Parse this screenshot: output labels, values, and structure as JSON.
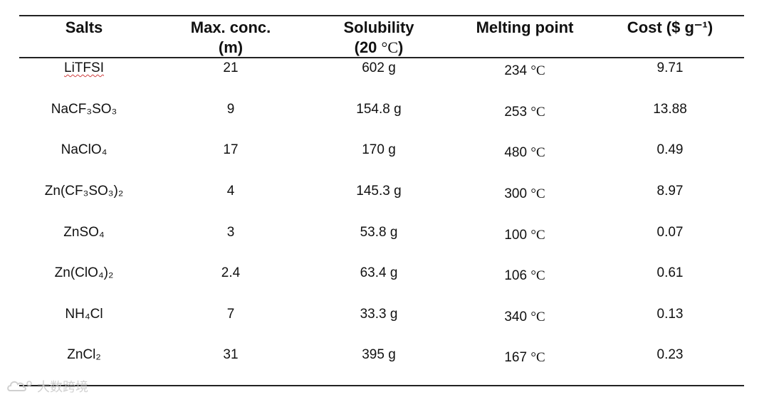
{
  "table": {
    "headers": {
      "salts": "Salts",
      "max_conc_line1": "Max. conc.",
      "max_conc_line2": "(m)",
      "solubility_line1": "Solubility",
      "solubility_line2_prefix": "(20 ",
      "solubility_line2_unit": "°C",
      "solubility_line2_suffix": ")",
      "melting_point": "Melting point",
      "cost": "Cost ($ g⁻¹)"
    },
    "rows": [
      {
        "salt": "LiTFSI",
        "max_conc": "21",
        "solubility": "602 g",
        "melting_value": "234",
        "melting_unit": "°C",
        "cost": "9.71"
      },
      {
        "salt": "NaCF₃SO₃",
        "max_conc": "9",
        "solubility": "154.8 g",
        "melting_value": "253",
        "melting_unit": "°C",
        "cost": "13.88"
      },
      {
        "salt": "NaClO₄",
        "max_conc": "17",
        "solubility": "170 g",
        "melting_value": "480",
        "melting_unit": "°C",
        "cost": "0.49"
      },
      {
        "salt": "Zn(CF₃SO₃)₂",
        "max_conc": "4",
        "solubility": "145.3 g",
        "melting_value": "300",
        "melting_unit": "°C",
        "cost": "8.97"
      },
      {
        "salt": "ZnSO₄",
        "max_conc": "3",
        "solubility": "53.8 g",
        "melting_value": "100",
        "melting_unit": "°C",
        "cost": "0.07"
      },
      {
        "salt": "Zn(ClO₄)₂",
        "max_conc": "2.4",
        "solubility": "63.4 g",
        "melting_value": "106",
        "melting_unit": "°C",
        "cost": "0.61"
      },
      {
        "salt": "NH₄Cl",
        "max_conc": "7",
        "solubility": "33.3 g",
        "melting_value": "340",
        "melting_unit": "°C",
        "cost": "0.13"
      },
      {
        "salt": "ZnCl₂",
        "max_conc": "31",
        "solubility": "395 g",
        "melting_value": "167",
        "melting_unit": "°C",
        "cost": "0.23"
      }
    ]
  },
  "watermark": {
    "text": "大数跨境",
    "icon": "cloud-logo-icon"
  }
}
